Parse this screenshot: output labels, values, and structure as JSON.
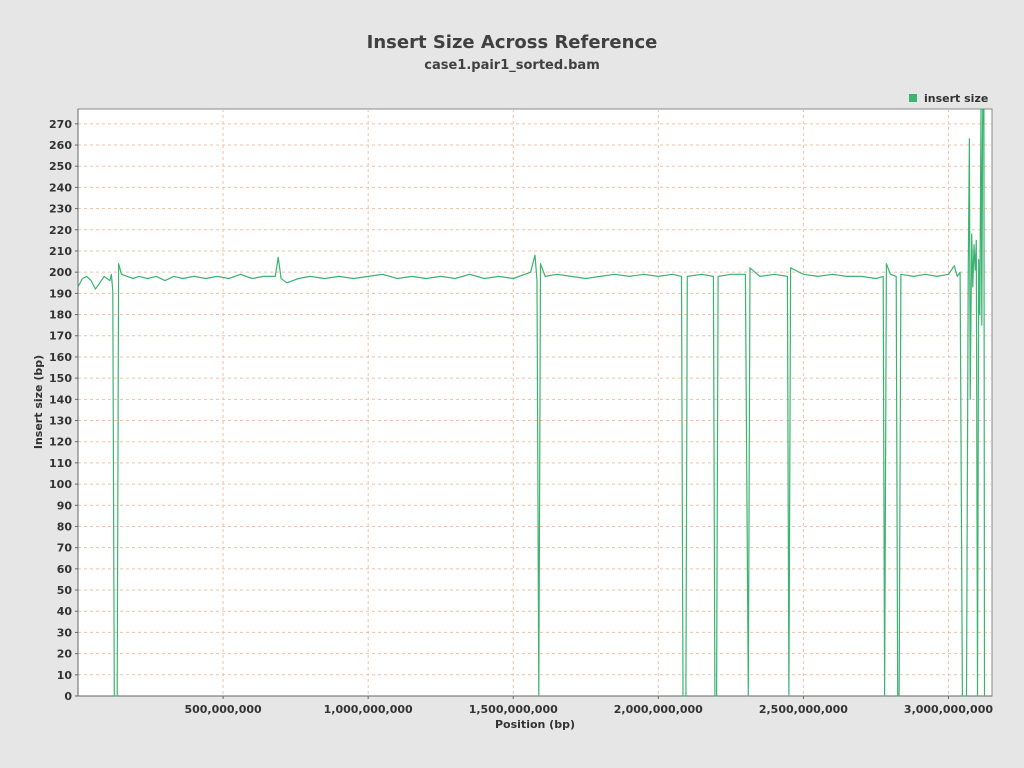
{
  "chart_data": {
    "type": "line",
    "title": "Insert Size Across Reference",
    "subtitle": "case1.pair1_sorted.bam",
    "xlabel": "Position (bp)",
    "ylabel": "Insert size (bp)",
    "xlim": [
      0,
      3150000000
    ],
    "ylim": [
      0,
      277
    ],
    "x_ticks": [
      500000000,
      1000000000,
      1500000000,
      2000000000,
      2500000000,
      3000000000
    ],
    "x_tick_labels": [
      "500,000,000",
      "1,000,000,000",
      "1,500,000,000",
      "2,000,000,000",
      "2,500,000,000",
      "3,000,000,000"
    ],
    "y_ticks": [
      0,
      10,
      20,
      30,
      40,
      50,
      60,
      70,
      80,
      90,
      100,
      110,
      120,
      130,
      140,
      150,
      160,
      170,
      180,
      190,
      200,
      210,
      220,
      230,
      240,
      250,
      260,
      270
    ],
    "grid": true,
    "legend_position": "top-right",
    "series": [
      {
        "name": "insert size",
        "color": "#3cb371",
        "points": [
          [
            0,
            193
          ],
          [
            15000000,
            197
          ],
          [
            30000000,
            198
          ],
          [
            45000000,
            196
          ],
          [
            60000000,
            192
          ],
          [
            75000000,
            195
          ],
          [
            90000000,
            198
          ],
          [
            100000000,
            197
          ],
          [
            110000000,
            196
          ],
          [
            115000000,
            199
          ],
          [
            120000000,
            191
          ],
          [
            125000000,
            0
          ],
          [
            135000000,
            0
          ],
          [
            140000000,
            204
          ],
          [
            150000000,
            199
          ],
          [
            170000000,
            198
          ],
          [
            190000000,
            197
          ],
          [
            210000000,
            198
          ],
          [
            240000000,
            197
          ],
          [
            270000000,
            198
          ],
          [
            300000000,
            196
          ],
          [
            330000000,
            198
          ],
          [
            360000000,
            197
          ],
          [
            400000000,
            198
          ],
          [
            440000000,
            197
          ],
          [
            480000000,
            198
          ],
          [
            520000000,
            197
          ],
          [
            560000000,
            199
          ],
          [
            600000000,
            197
          ],
          [
            640000000,
            198
          ],
          [
            680000000,
            198
          ],
          [
            690000000,
            207
          ],
          [
            700000000,
            197
          ],
          [
            720000000,
            195
          ],
          [
            760000000,
            197
          ],
          [
            800000000,
            198
          ],
          [
            850000000,
            197
          ],
          [
            900000000,
            198
          ],
          [
            950000000,
            197
          ],
          [
            1000000000,
            198
          ],
          [
            1050000000,
            199
          ],
          [
            1100000000,
            197
          ],
          [
            1150000000,
            198
          ],
          [
            1200000000,
            197
          ],
          [
            1250000000,
            198
          ],
          [
            1300000000,
            197
          ],
          [
            1350000000,
            199
          ],
          [
            1400000000,
            197
          ],
          [
            1450000000,
            198
          ],
          [
            1500000000,
            197
          ],
          [
            1560000000,
            200
          ],
          [
            1575000000,
            208
          ],
          [
            1582000000,
            196
          ],
          [
            1588000000,
            0
          ],
          [
            1594000000,
            204
          ],
          [
            1610000000,
            198
          ],
          [
            1650000000,
            199
          ],
          [
            1700000000,
            198
          ],
          [
            1750000000,
            197
          ],
          [
            1800000000,
            198
          ],
          [
            1850000000,
            199
          ],
          [
            1900000000,
            198
          ],
          [
            1950000000,
            199
          ],
          [
            2000000000,
            198
          ],
          [
            2050000000,
            199
          ],
          [
            2080000000,
            198
          ],
          [
            2085000000,
            0
          ],
          [
            2095000000,
            0
          ],
          [
            2100000000,
            198
          ],
          [
            2150000000,
            199
          ],
          [
            2190000000,
            198
          ],
          [
            2195000000,
            0
          ],
          [
            2201000000,
            0
          ],
          [
            2206000000,
            198
          ],
          [
            2250000000,
            199
          ],
          [
            2300000000,
            199
          ],
          [
            2310000000,
            0
          ],
          [
            2316000000,
            202
          ],
          [
            2350000000,
            198
          ],
          [
            2400000000,
            199
          ],
          [
            2445000000,
            198
          ],
          [
            2450000000,
            0
          ],
          [
            2456000000,
            202
          ],
          [
            2500000000,
            199
          ],
          [
            2550000000,
            198
          ],
          [
            2600000000,
            199
          ],
          [
            2650000000,
            198
          ],
          [
            2700000000,
            198
          ],
          [
            2750000000,
            197
          ],
          [
            2775000000,
            198
          ],
          [
            2780000000,
            0
          ],
          [
            2786000000,
            204
          ],
          [
            2800000000,
            199
          ],
          [
            2820000000,
            198
          ],
          [
            2825000000,
            0
          ],
          [
            2830000000,
            0
          ],
          [
            2836000000,
            199
          ],
          [
            2880000000,
            198
          ],
          [
            2920000000,
            199
          ],
          [
            2960000000,
            198
          ],
          [
            3000000000,
            199
          ],
          [
            3020000000,
            203
          ],
          [
            3030000000,
            198
          ],
          [
            3040000000,
            200
          ],
          [
            3048000000,
            0
          ],
          [
            3062000000,
            0
          ],
          [
            3068000000,
            198
          ],
          [
            3072000000,
            263
          ],
          [
            3075000000,
            140
          ],
          [
            3080000000,
            218
          ],
          [
            3084000000,
            193
          ],
          [
            3088000000,
            213
          ],
          [
            3092000000,
            201
          ],
          [
            3096000000,
            215
          ],
          [
            3100000000,
            0
          ],
          [
            3104000000,
            206
          ],
          [
            3108000000,
            180
          ],
          [
            3112000000,
            277
          ],
          [
            3115000000,
            175
          ],
          [
            3118000000,
            277
          ],
          [
            3120000000,
            270
          ],
          [
            3122000000,
            277
          ],
          [
            3124000000,
            0
          ]
        ]
      }
    ]
  }
}
